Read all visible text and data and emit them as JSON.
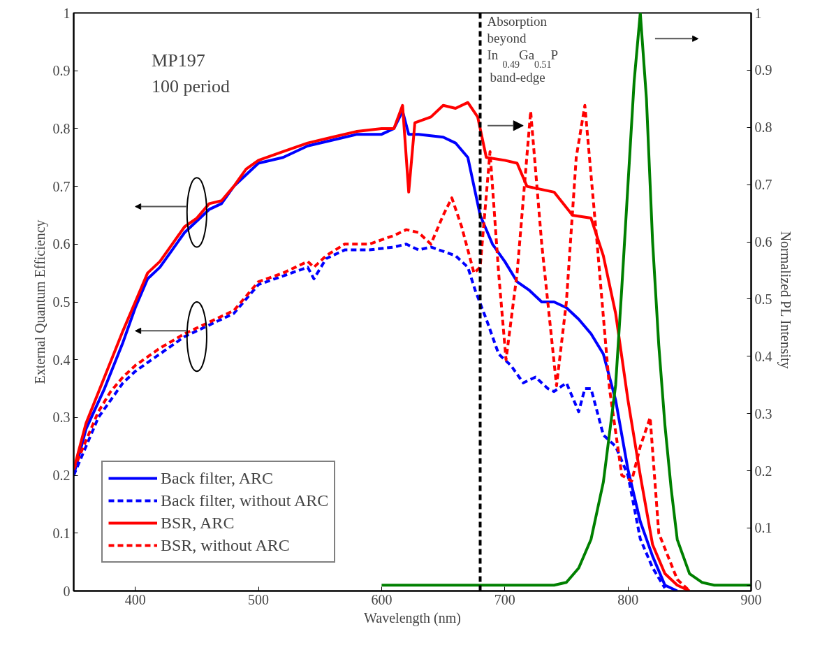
{
  "chart_data": {
    "type": "line",
    "xlabel": "Wavelength (nm)",
    "ylabel": "External Quantum Efficiency",
    "y2label": "Normalized  PL Intensity",
    "xlim": [
      350,
      900
    ],
    "xticks": [
      400,
      500,
      600,
      700,
      800,
      900
    ],
    "ylim": [
      0,
      1
    ],
    "yticks": [
      0,
      0.1,
      0.2,
      0.3,
      0.4,
      0.5,
      0.6,
      0.7,
      0.8,
      0.9,
      1
    ],
    "y2lim": [
      -0.01,
      1
    ],
    "y2ticks": [
      0,
      0.1,
      0.2,
      0.3,
      0.4,
      0.5,
      0.6,
      0.7,
      0.8,
      0.9,
      1
    ],
    "grid": false,
    "legend": "bottom left",
    "marker": "none",
    "series": [
      {
        "name": "Back filter, ARC",
        "color": "#0000ff",
        "line_style": "solid",
        "x": [
          350,
          360,
          375,
          390,
          400,
          410,
          420,
          430,
          440,
          450,
          460,
          470,
          480,
          490,
          500,
          520,
          540,
          560,
          580,
          600,
          610,
          617,
          622,
          630,
          650,
          660,
          670,
          675,
          680,
          690,
          700,
          710,
          720,
          730,
          740,
          750,
          760,
          770,
          780,
          790,
          800,
          810,
          820,
          830,
          840
        ],
        "values": [
          0.2,
          0.28,
          0.35,
          0.43,
          0.49,
          0.54,
          0.56,
          0.59,
          0.62,
          0.64,
          0.66,
          0.67,
          0.7,
          0.72,
          0.74,
          0.75,
          0.77,
          0.78,
          0.79,
          0.79,
          0.8,
          0.83,
          0.79,
          0.79,
          0.785,
          0.775,
          0.75,
          0.7,
          0.65,
          0.6,
          0.57,
          0.535,
          0.52,
          0.5,
          0.5,
          0.49,
          0.47,
          0.445,
          0.41,
          0.33,
          0.21,
          0.12,
          0.06,
          0.01,
          0
        ]
      },
      {
        "name": "Back filter, without ARC",
        "color": "#0000ff",
        "line_style": "dashed",
        "x": [
          350,
          360,
          370,
          380,
          390,
          400,
          420,
          440,
          460,
          480,
          500,
          520,
          540,
          545,
          555,
          570,
          590,
          610,
          620,
          630,
          640,
          660,
          670,
          676,
          685,
          695,
          705,
          715,
          725,
          735,
          740,
          750,
          760,
          765,
          770,
          780,
          790,
          800,
          810,
          820,
          830
        ],
        "values": [
          0.2,
          0.25,
          0.3,
          0.33,
          0.36,
          0.38,
          0.41,
          0.44,
          0.46,
          0.48,
          0.53,
          0.545,
          0.56,
          0.54,
          0.575,
          0.59,
          0.59,
          0.595,
          0.6,
          0.59,
          0.595,
          0.58,
          0.56,
          0.52,
          0.47,
          0.41,
          0.39,
          0.36,
          0.37,
          0.35,
          0.345,
          0.36,
          0.31,
          0.35,
          0.35,
          0.27,
          0.25,
          0.2,
          0.09,
          0.04,
          0.005
        ]
      },
      {
        "name": "BSR, ARC",
        "color": "#ff0000",
        "line_style": "solid",
        "x": [
          350,
          360,
          375,
          390,
          400,
          410,
          420,
          430,
          440,
          450,
          460,
          470,
          480,
          490,
          500,
          520,
          540,
          560,
          580,
          600,
          610,
          617,
          622,
          627,
          640,
          650,
          660,
          670,
          678,
          685,
          700,
          710,
          718,
          740,
          755,
          770,
          780,
          790,
          800,
          810,
          820,
          830,
          840,
          850
        ],
        "values": [
          0.21,
          0.29,
          0.37,
          0.45,
          0.5,
          0.55,
          0.57,
          0.6,
          0.63,
          0.645,
          0.67,
          0.675,
          0.7,
          0.73,
          0.745,
          0.76,
          0.775,
          0.785,
          0.795,
          0.8,
          0.8,
          0.84,
          0.69,
          0.81,
          0.82,
          0.84,
          0.835,
          0.845,
          0.82,
          0.75,
          0.745,
          0.74,
          0.7,
          0.69,
          0.65,
          0.645,
          0.58,
          0.48,
          0.33,
          0.2,
          0.08,
          0.03,
          0.01,
          0
        ]
      },
      {
        "name": "BSR, without ARC",
        "color": "#ff0000",
        "line_style": "dashed",
        "x": [
          350,
          360,
          370,
          380,
          390,
          400,
          420,
          440,
          460,
          480,
          500,
          520,
          540,
          545,
          555,
          570,
          590,
          610,
          620,
          630,
          640,
          650,
          657,
          665,
          675,
          680,
          688,
          695,
          701,
          710,
          721,
          730,
          742,
          750,
          758,
          765,
          775,
          785,
          795,
          803,
          810,
          818,
          825,
          840,
          850
        ],
        "values": [
          0.21,
          0.26,
          0.31,
          0.345,
          0.37,
          0.39,
          0.42,
          0.445,
          0.465,
          0.485,
          0.535,
          0.55,
          0.57,
          0.56,
          0.58,
          0.6,
          0.6,
          0.615,
          0.625,
          0.62,
          0.6,
          0.65,
          0.68,
          0.63,
          0.55,
          0.56,
          0.76,
          0.55,
          0.4,
          0.55,
          0.83,
          0.6,
          0.355,
          0.5,
          0.75,
          0.84,
          0.6,
          0.35,
          0.2,
          0.19,
          0.25,
          0.3,
          0.1,
          0.02,
          0
        ]
      },
      {
        "color": "#008000",
        "line_style": "solid",
        "axis": "y2",
        "x": [
          600,
          700,
          740,
          750,
          760,
          770,
          780,
          790,
          795,
          800,
          805,
          810,
          815,
          820,
          825,
          830,
          835,
          840,
          850,
          860,
          870,
          900
        ],
        "values": [
          0,
          0,
          0,
          0.005,
          0.03,
          0.08,
          0.18,
          0.35,
          0.52,
          0.7,
          0.88,
          1,
          0.85,
          0.6,
          0.42,
          0.28,
          0.17,
          0.08,
          0.02,
          0.005,
          0,
          0
        ]
      }
    ],
    "ref_lines": [
      {
        "axis": "x",
        "value": 680,
        "color": "#000000",
        "line_style": "dashed"
      }
    ],
    "annotations": [
      "MP197",
      "100 period",
      {
        "text": "Absorption beyond In$_{0.49}$Ga$_{0.51}$P band-edge",
        "x": 680,
        "y": 1
      }
    ]
  }
}
